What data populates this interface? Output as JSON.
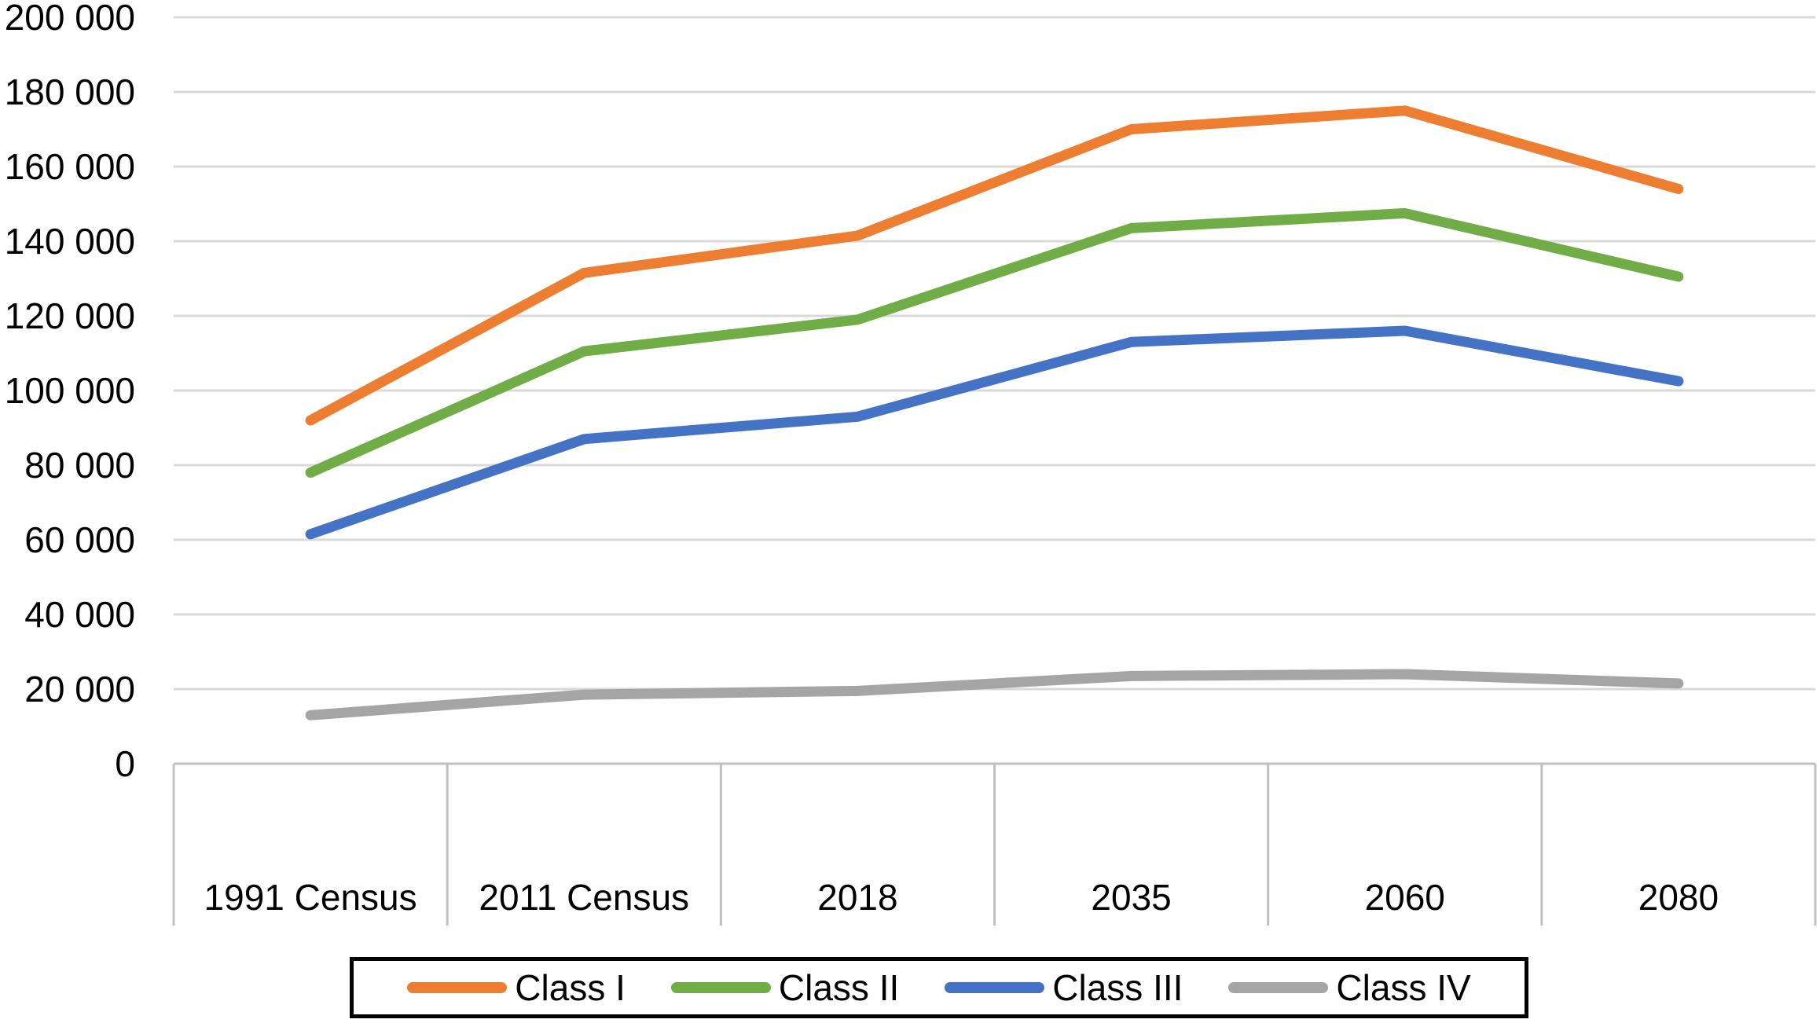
{
  "chart_data": {
    "type": "line",
    "title": "",
    "xlabel": "",
    "ylabel": "",
    "categories": [
      "1991 Census",
      "2011 Census",
      "2018",
      "2035",
      "2060",
      "2080"
    ],
    "series": [
      {
        "name": "Class I",
        "color": "#ED7D31",
        "values": [
          92000,
          131500,
          141500,
          170000,
          175000,
          154000
        ]
      },
      {
        "name": "Class II",
        "color": "#70AD47",
        "values": [
          78000,
          110500,
          119000,
          143500,
          147500,
          130500
        ]
      },
      {
        "name": "Class III",
        "color": "#4472C4",
        "values": [
          61500,
          87000,
          93000,
          113000,
          116000,
          102500
        ]
      },
      {
        "name": "Class IV",
        "color": "#A5A5A5",
        "values": [
          13000,
          18500,
          19500,
          23500,
          24000,
          21500
        ]
      }
    ],
    "ylim": [
      0,
      200000
    ],
    "ytick_step": 20000,
    "ytick_labels_top_to_bottom": [
      "200 000",
      "180 000",
      "160 000",
      "140 000",
      "120 000",
      "100 000",
      "80 000",
      "60 000",
      "40 000",
      "20 000",
      "0"
    ],
    "grid": true,
    "legend_position": "bottom"
  },
  "colors": {
    "gridline": "#D9D9D9",
    "axis_line": "#C0C0C0",
    "text": "#000000",
    "background": "#FFFFFF",
    "legend_border": "#000000"
  }
}
